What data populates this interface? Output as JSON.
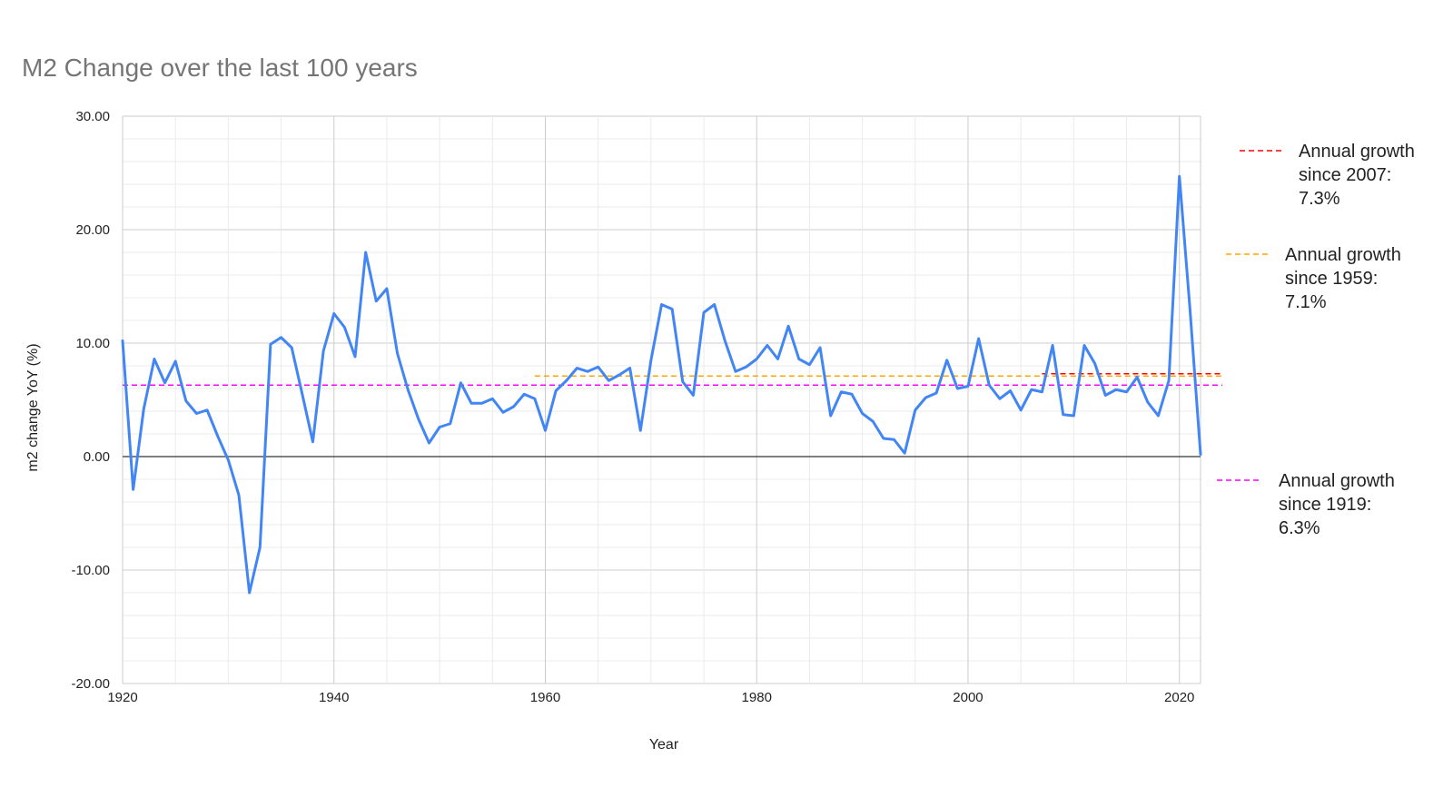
{
  "chart_data": {
    "type": "line",
    "title": "M2 Change over the last 100 years",
    "xlabel": "Year",
    "ylabel": "m2 change YoY (%)",
    "xlim": [
      1920,
      2022
    ],
    "ylim": [
      -20,
      30
    ],
    "x_ticks": [
      "1920",
      "1940",
      "1960",
      "1980",
      "2000",
      "2020"
    ],
    "y_ticks": [
      "30.00",
      "20.00",
      "10.00",
      "0.00",
      "-10.00",
      "-20.00"
    ],
    "grid": true,
    "colors": {
      "series": "#4285f4",
      "avg_2007": "#ff0000",
      "avg_1959": "#ffa500",
      "avg_1919": "#ff00ff",
      "zero_line": "#333333"
    },
    "series": [
      {
        "name": "m2 change YoY (%)",
        "x": [
          1920,
          1921,
          1922,
          1923,
          1924,
          1925,
          1926,
          1927,
          1928,
          1929,
          1930,
          1931,
          1932,
          1933,
          1934,
          1935,
          1936,
          1937,
          1938,
          1939,
          1940,
          1941,
          1942,
          1943,
          1944,
          1945,
          1946,
          1947,
          1948,
          1949,
          1950,
          1951,
          1952,
          1953,
          1954,
          1955,
          1956,
          1957,
          1958,
          1959,
          1960,
          1961,
          1962,
          1963,
          1964,
          1965,
          1966,
          1967,
          1968,
          1969,
          1970,
          1971,
          1972,
          1973,
          1974,
          1975,
          1976,
          1977,
          1978,
          1979,
          1980,
          1981,
          1982,
          1983,
          1984,
          1985,
          1986,
          1987,
          1988,
          1989,
          1990,
          1991,
          1992,
          1993,
          1994,
          1995,
          1996,
          1997,
          1998,
          1999,
          2000,
          2001,
          2002,
          2003,
          2004,
          2005,
          2006,
          2007,
          2008,
          2009,
          2010,
          2011,
          2012,
          2013,
          2014,
          2015,
          2016,
          2017,
          2018,
          2019,
          2020,
          2021,
          2022
        ],
        "values": [
          10.2,
          -2.9,
          4.2,
          8.6,
          6.5,
          8.4,
          4.9,
          3.8,
          4.1,
          1.8,
          -0.3,
          -3.4,
          -12.0,
          -8.0,
          9.9,
          10.5,
          9.6,
          5.5,
          1.3,
          9.3,
          12.6,
          11.4,
          8.8,
          18.0,
          13.7,
          14.8,
          9.1,
          5.9,
          3.3,
          1.2,
          2.6,
          2.9,
          6.5,
          4.7,
          4.7,
          5.1,
          3.9,
          4.4,
          5.5,
          5.1,
          2.3,
          5.8,
          6.7,
          7.8,
          7.5,
          7.9,
          6.7,
          7.2,
          7.8,
          2.3,
          8.5,
          13.4,
          13.0,
          6.6,
          5.4,
          12.7,
          13.4,
          10.2,
          7.5,
          7.9,
          8.6,
          9.8,
          8.6,
          11.5,
          8.6,
          8.1,
          9.6,
          3.6,
          5.7,
          5.5,
          3.8,
          3.1,
          1.6,
          1.5,
          0.3,
          4.1,
          5.2,
          5.6,
          8.5,
          6.0,
          6.2,
          10.4,
          6.3,
          5.1,
          5.8,
          4.1,
          5.9,
          5.7,
          9.8,
          3.7,
          3.6,
          9.8,
          8.2,
          5.4,
          5.9,
          5.7,
          7.0,
          4.8,
          3.6,
          6.7,
          24.7,
          13.0,
          0.2
        ]
      }
    ],
    "reference_lines": [
      {
        "name": "Annual growth since 2007: 7.3%",
        "value": 7.3,
        "from": 2007,
        "to": 2022,
        "color": "#ff0000"
      },
      {
        "name": "Annual growth since 1959: 7.1%",
        "value": 7.1,
        "from": 1959,
        "to": 2022,
        "color": "#ffa500"
      },
      {
        "name": "Annual growth since 1919: 6.3%",
        "value": 6.3,
        "from": 1920,
        "to": 2022,
        "color": "#ff00ff"
      }
    ],
    "legend": [
      {
        "key": "avg_2007",
        "lines": [
          "Annual growth",
          "since 2007:",
          "7.3%"
        ],
        "color": "#ff0000"
      },
      {
        "key": "avg_1959",
        "lines": [
          "Annual growth",
          "since 1959:",
          "7.1%"
        ],
        "color": "#ffa500"
      },
      {
        "key": "avg_1919",
        "lines": [
          "Annual growth",
          "since 1919:",
          "6.3%"
        ],
        "color": "#ff00ff"
      }
    ],
    "legend_position": "right"
  }
}
